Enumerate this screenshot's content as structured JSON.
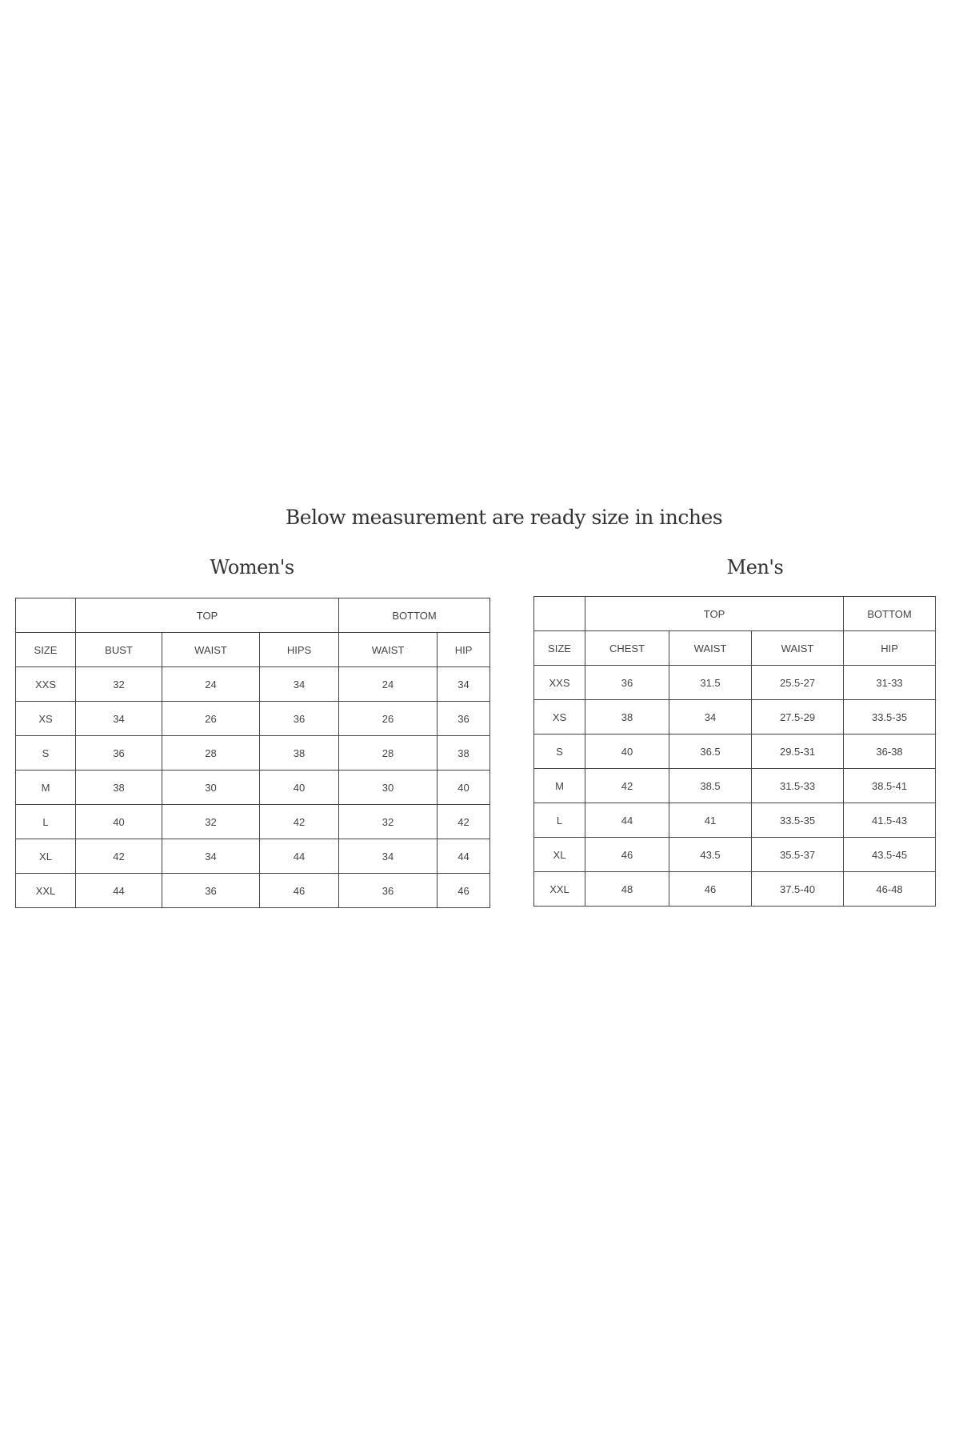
{
  "title": "Below measurement are ready size in inches",
  "women": {
    "heading": "Women's",
    "group_headers": [
      "TOP",
      "BOTTOM"
    ],
    "columns": [
      "SIZE",
      "BUST",
      "WAIST",
      "HIPS",
      "WAIST",
      "HIP"
    ],
    "rows": [
      [
        "XXS",
        "32",
        "24",
        "34",
        "24",
        "34"
      ],
      [
        "XS",
        "34",
        "26",
        "36",
        "26",
        "36"
      ],
      [
        "S",
        "36",
        "28",
        "38",
        "28",
        "38"
      ],
      [
        "M",
        "38",
        "30",
        "40",
        "30",
        "40"
      ],
      [
        "L",
        "40",
        "32",
        "42",
        "32",
        "42"
      ],
      [
        "XL",
        "42",
        "34",
        "44",
        "34",
        "44"
      ],
      [
        "XXL",
        "44",
        "36",
        "46",
        "36",
        "46"
      ]
    ]
  },
  "men": {
    "heading": "Men's",
    "group_headers": [
      "TOP",
      "BOTTOM"
    ],
    "columns": [
      "SIZE",
      "CHEST",
      "WAIST",
      "WAIST",
      "HIP"
    ],
    "rows": [
      [
        "XXS",
        "36",
        "31.5",
        "25.5-27",
        "31-33"
      ],
      [
        "XS",
        "38",
        "34",
        "27.5-29",
        "33.5-35"
      ],
      [
        "S",
        "40",
        "36.5",
        "29.5-31",
        "36-38"
      ],
      [
        "M",
        "42",
        "38.5",
        "31.5-33",
        "38.5-41"
      ],
      [
        "L",
        "44",
        "41",
        "33.5-35",
        "41.5-43"
      ],
      [
        "XL",
        "46",
        "43.5",
        "35.5-37",
        "43.5-45"
      ],
      [
        "XXL",
        "48",
        "46",
        "37.5-40",
        "46-48"
      ]
    ]
  }
}
